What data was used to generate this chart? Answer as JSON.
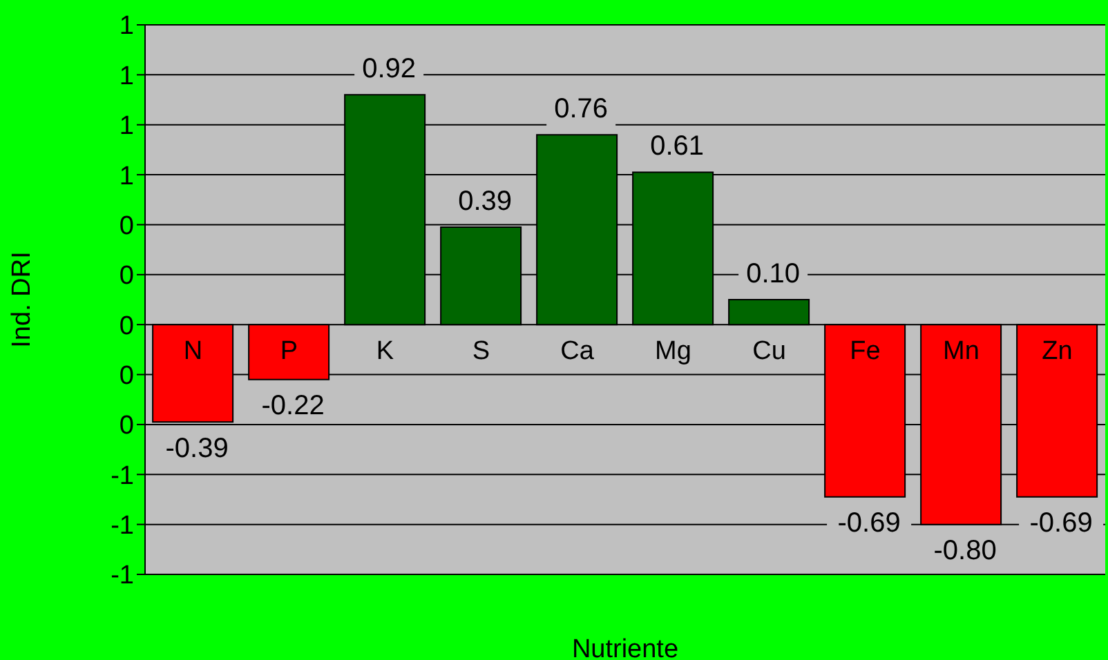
{
  "chart_data": {
    "type": "bar",
    "xlabel": "Nutriente",
    "ylabel": "Ind. DRI",
    "categories": [
      "N",
      "P",
      "K",
      "S",
      "Ca",
      "Mg",
      "Cu",
      "Fe",
      "Mn",
      "Zn"
    ],
    "values": [
      -0.39,
      -0.22,
      0.92,
      0.39,
      0.76,
      0.61,
      0.1,
      -0.69,
      -0.8,
      -0.69
    ],
    "value_labels": [
      "-0.39",
      "-0.22",
      "0.92",
      "0.39",
      "0.76",
      "0.61",
      "0.10",
      "-0.69",
      "-0.80",
      "-0.69"
    ],
    "colors": [
      "#ff0000",
      "#ff0000",
      "#006600",
      "#006600",
      "#006600",
      "#006600",
      "#006600",
      "#ff0000",
      "#ff0000",
      "#ff0000"
    ],
    "ylim": [
      -1.0,
      1.2
    ],
    "yticks": [
      {
        "value": -1.0,
        "label": "-1"
      },
      {
        "value": -0.8,
        "label": "-1"
      },
      {
        "value": -0.6,
        "label": "-1"
      },
      {
        "value": -0.4,
        "label": "0"
      },
      {
        "value": -0.2,
        "label": "0"
      },
      {
        "value": 0,
        "label": "0"
      },
      {
        "value": 0.2,
        "label": "0"
      },
      {
        "value": 0.4,
        "label": "0"
      },
      {
        "value": 0.6,
        "label": "1"
      },
      {
        "value": 0.8,
        "label": "1"
      },
      {
        "value": 1.0,
        "label": "1"
      },
      {
        "value": 1.2,
        "label": "1"
      }
    ],
    "grid": "y",
    "legend": false
  }
}
